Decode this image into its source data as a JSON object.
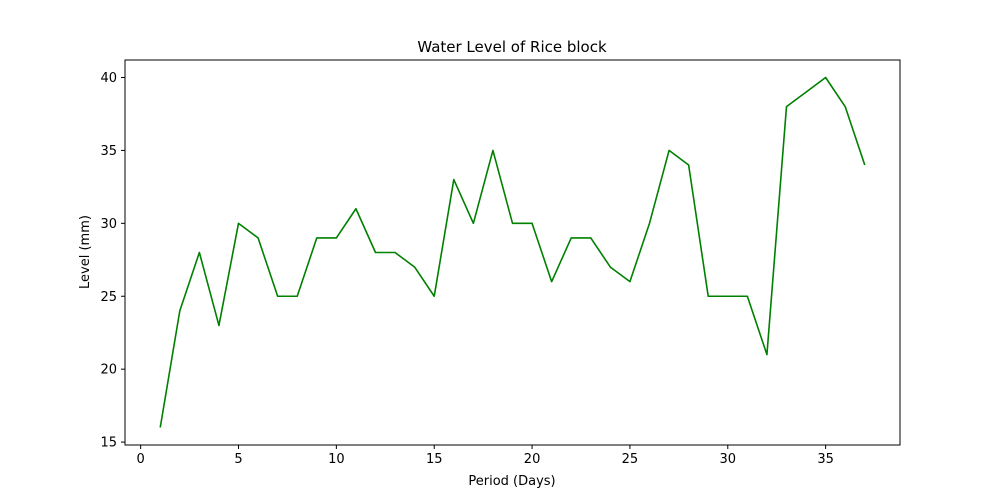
{
  "chart_data": {
    "type": "line",
    "title": "Water Level of Rice block",
    "xlabel": "Period (Days)",
    "ylabel": "Level (mm)",
    "xlim": [
      -0.8,
      38.8
    ],
    "ylim": [
      14.8,
      41.2
    ],
    "xticks": [
      0,
      5,
      10,
      15,
      20,
      25,
      30,
      35
    ],
    "yticks": [
      15,
      20,
      25,
      30,
      35,
      40
    ],
    "grid": false,
    "series": [
      {
        "color": "#008000",
        "x": [
          1,
          2,
          3,
          4,
          5,
          6,
          7,
          8,
          9,
          10,
          11,
          12,
          13,
          14,
          15,
          16,
          17,
          18,
          19,
          20,
          21,
          22,
          23,
          24,
          25,
          26,
          27,
          28,
          29,
          30,
          31,
          32,
          33,
          34,
          35,
          36,
          37
        ],
        "y": [
          16,
          24,
          28,
          23,
          30,
          29,
          25,
          25,
          29,
          29,
          31,
          28,
          28,
          27,
          25,
          33,
          30,
          35,
          30,
          30,
          26,
          29,
          29,
          27,
          26,
          30,
          35,
          34,
          25,
          25,
          25,
          21,
          38,
          39,
          40,
          38,
          34
        ]
      }
    ]
  }
}
